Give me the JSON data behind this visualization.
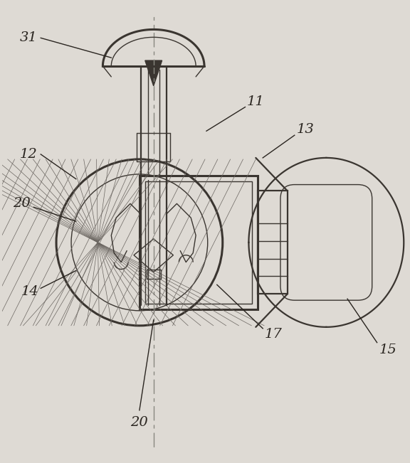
{
  "background_color": "#dedad4",
  "line_color": "#3a3530",
  "label_color": "#2a2520",
  "fig_width": 5.76,
  "fig_height": 6.51,
  "dpi": 100,
  "lw_main": 1.6,
  "lw_thin": 1.0,
  "lw_thick": 2.2
}
